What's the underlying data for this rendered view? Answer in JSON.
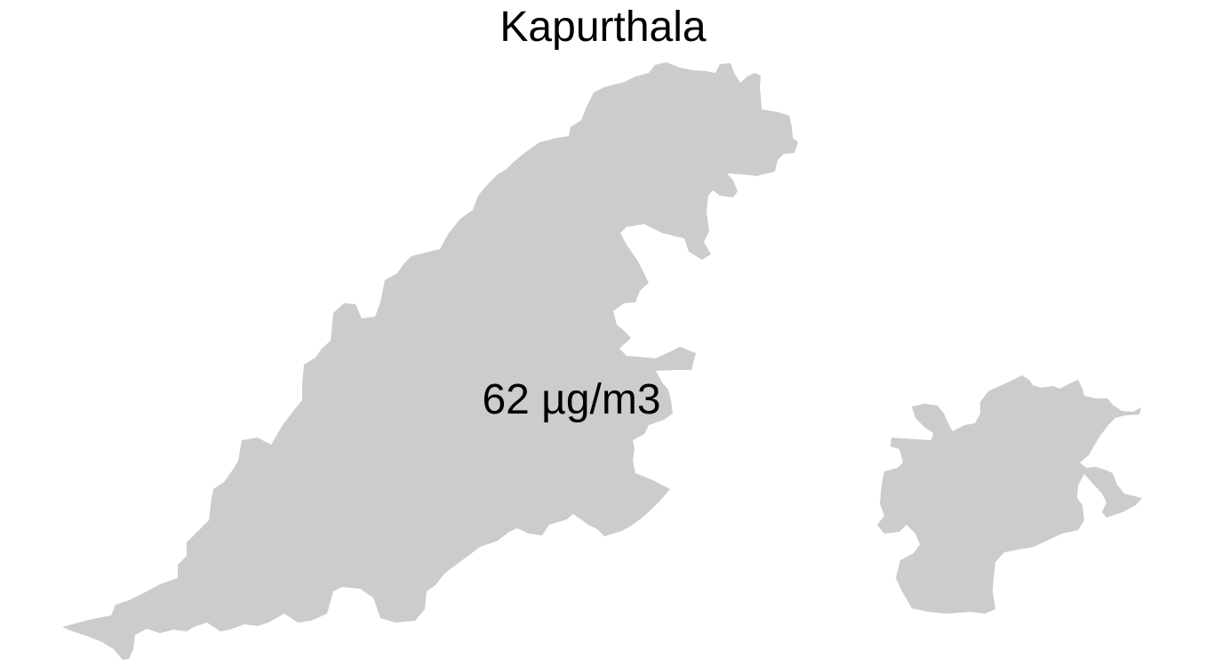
{
  "map": {
    "title": "Kapurthala",
    "value_label": "62 µg/m3",
    "region_fill": "#cccccc",
    "background": "#ffffff",
    "text_color": "#000000"
  }
}
